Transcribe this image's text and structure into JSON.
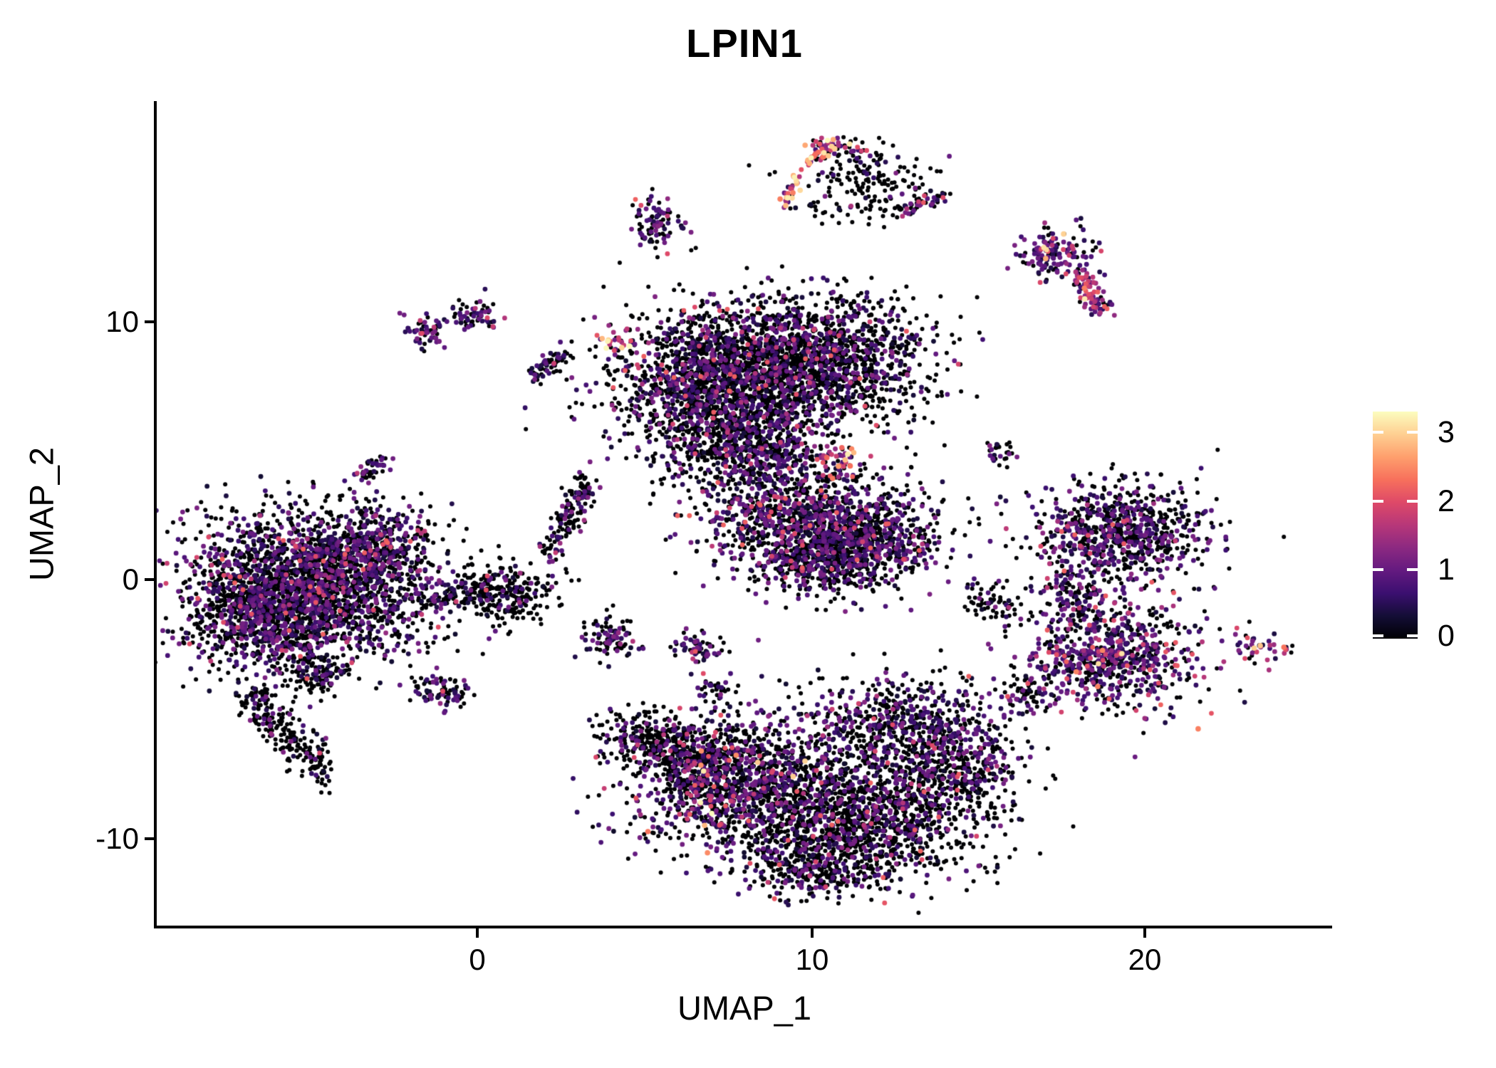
{
  "title": "LPIN1",
  "chart_data": {
    "type": "scatter",
    "title": "LPIN1",
    "xlabel": "UMAP_1",
    "ylabel": "UMAP_2",
    "x_tick_labels": [
      "0",
      "10",
      "20"
    ],
    "x_tick_values": [
      0,
      10,
      20
    ],
    "y_tick_labels": [
      "10",
      "0",
      "-10"
    ],
    "y_tick_values": [
      10,
      0,
      -10
    ],
    "xlim": [
      -9.6,
      25.5
    ],
    "ylim": [
      -13.5,
      18.6
    ],
    "grid": false,
    "legend": {
      "position": "right",
      "labels": [
        "3",
        "2",
        "1",
        "0"
      ],
      "values": [
        3,
        2,
        1,
        0
      ],
      "vmin": 0,
      "vmax": 3.3,
      "colormap": "magma"
    },
    "colormap_stops": [
      [
        0.0,
        "#000004"
      ],
      [
        0.1,
        "#140e36"
      ],
      [
        0.2,
        "#3b0f70"
      ],
      [
        0.3,
        "#641a80"
      ],
      [
        0.4,
        "#8c2981"
      ],
      [
        0.5,
        "#b73779"
      ],
      [
        0.6,
        "#de4968"
      ],
      [
        0.7,
        "#f7705c"
      ],
      [
        0.8,
        "#fe9f6d"
      ],
      [
        0.9,
        "#fecf92"
      ],
      [
        1.0,
        "#fcfdbf"
      ]
    ],
    "value_bins": {
      "zero": 0,
      "low": [
        0.25,
        1.2
      ],
      "mid": [
        1.2,
        2.2
      ],
      "high": [
        2.2,
        3.3
      ]
    },
    "clusters": [
      {
        "name": "left-main-a",
        "shape": "gauss",
        "c": [
          -5.6,
          0.2
        ],
        "sx": 1.6,
        "sy": 1.3,
        "n": 1100,
        "w": [
          0.6,
          0.36,
          0.04,
          0
        ]
      },
      {
        "name": "left-main-b",
        "shape": "gauss",
        "c": [
          -4.2,
          -0.8
        ],
        "sx": 1.5,
        "sy": 1.2,
        "n": 900,
        "w": [
          0.62,
          0.34,
          0.04,
          0
        ]
      },
      {
        "name": "left-main-c",
        "shape": "gauss",
        "c": [
          -6.6,
          -1.6
        ],
        "sx": 1.2,
        "sy": 1.0,
        "n": 600,
        "w": [
          0.66,
          0.31,
          0.03,
          0
        ]
      },
      {
        "name": "left-main-d",
        "shape": "gauss",
        "c": [
          -3.3,
          1.3
        ],
        "sx": 1.0,
        "sy": 0.8,
        "n": 450,
        "w": [
          0.58,
          0.38,
          0.04,
          0
        ]
      },
      {
        "name": "left-tail",
        "shape": "line",
        "from": [
          -6.9,
          -4.2
        ],
        "to": [
          -4.6,
          -7.6
        ],
        "jitter": 0.35,
        "n": 240,
        "w": [
          0.8,
          0.19,
          0.01,
          0
        ]
      },
      {
        "name": "left-small-below",
        "shape": "gauss",
        "c": [
          -4.9,
          -3.6
        ],
        "sx": 0.5,
        "sy": 0.4,
        "n": 110,
        "w": [
          0.7,
          0.28,
          0.02,
          0
        ]
      },
      {
        "name": "small-blob-lower-mid",
        "shape": "gauss",
        "c": [
          -1.1,
          -4.3
        ],
        "sx": 0.45,
        "sy": 0.35,
        "n": 80,
        "w": [
          0.55,
          0.4,
          0.05,
          0
        ]
      },
      {
        "name": "tiny-streak-left",
        "shape": "line",
        "from": [
          -3.5,
          4.0
        ],
        "to": [
          -2.8,
          4.7
        ],
        "jitter": 0.15,
        "n": 45,
        "w": [
          0.5,
          0.45,
          0.05,
          0
        ]
      },
      {
        "name": "blob-center-left",
        "shape": "gauss",
        "c": [
          0.8,
          -0.5
        ],
        "sx": 0.75,
        "sy": 0.6,
        "n": 260,
        "w": [
          0.78,
          0.2,
          0.02,
          0
        ]
      },
      {
        "name": "bridge-to-blob",
        "shape": "line",
        "from": [
          -1.9,
          -0.9
        ],
        "to": [
          0.2,
          -0.5
        ],
        "jitter": 0.2,
        "n": 80,
        "w": [
          0.75,
          0.24,
          0.01,
          0
        ]
      },
      {
        "name": "diag-bridge",
        "shape": "line",
        "from": [
          2.1,
          0.9
        ],
        "to": [
          3.4,
          4.0
        ],
        "jitter": 0.22,
        "n": 150,
        "w": [
          0.7,
          0.28,
          0.02,
          0
        ]
      },
      {
        "name": "top-center-left",
        "shape": "gauss",
        "c": [
          6.8,
          7.6
        ],
        "sx": 1.5,
        "sy": 1.4,
        "n": 1400,
        "w": [
          0.66,
          0.3,
          0.04,
          0
        ]
      },
      {
        "name": "top-center-right",
        "shape": "gauss",
        "c": [
          9.9,
          8.4
        ],
        "sx": 1.7,
        "sy": 1.3,
        "n": 1800,
        "w": [
          0.7,
          0.27,
          0.03,
          0
        ]
      },
      {
        "name": "top-center-lower",
        "shape": "gauss",
        "c": [
          7.9,
          5.2
        ],
        "sx": 1.1,
        "sy": 0.8,
        "n": 450,
        "w": [
          0.72,
          0.26,
          0.02,
          0
        ]
      },
      {
        "name": "salmon-patch-left-edge",
        "shape": "gauss",
        "c": [
          4.2,
          9.3
        ],
        "sx": 0.3,
        "sy": 0.25,
        "n": 22,
        "w": [
          0,
          0.2,
          0.6,
          0.2
        ]
      },
      {
        "name": "sparse-center",
        "shape": "gauss",
        "c": [
          8.8,
          4.3
        ],
        "sx": 1.3,
        "sy": 0.8,
        "n": 160,
        "w": [
          0.6,
          0.33,
          0.07,
          0
        ]
      },
      {
        "name": "bright-mid-patch",
        "shape": "gauss",
        "c": [
          10.8,
          4.7
        ],
        "sx": 0.35,
        "sy": 0.3,
        "n": 45,
        "w": [
          0.1,
          0.3,
          0.45,
          0.15
        ]
      },
      {
        "name": "mid-cluster-a",
        "shape": "gauss",
        "c": [
          9.6,
          2.2
        ],
        "sx": 1.5,
        "sy": 1.0,
        "n": 900,
        "w": [
          0.55,
          0.39,
          0.06,
          0
        ]
      },
      {
        "name": "mid-cluster-b",
        "shape": "gauss",
        "c": [
          11.7,
          1.6
        ],
        "sx": 1.2,
        "sy": 0.9,
        "n": 600,
        "w": [
          0.6,
          0.36,
          0.04,
          0
        ]
      },
      {
        "name": "mid-cluster-c",
        "shape": "gauss",
        "c": [
          10.2,
          0.6
        ],
        "sx": 1.0,
        "sy": 0.6,
        "n": 300,
        "w": [
          0.65,
          0.32,
          0.03,
          0
        ]
      },
      {
        "name": "bottom-left",
        "shape": "gauss",
        "c": [
          7.6,
          -7.8
        ],
        "sx": 1.6,
        "sy": 1.4,
        "n": 1300,
        "w": [
          0.58,
          0.35,
          0.06,
          0.01
        ]
      },
      {
        "name": "bottom-right",
        "shape": "gauss",
        "c": [
          11.5,
          -9.2
        ],
        "sx": 1.8,
        "sy": 1.3,
        "n": 1500,
        "w": [
          0.74,
          0.24,
          0.02,
          0
        ]
      },
      {
        "name": "bottom-upper",
        "shape": "gauss",
        "c": [
          12.8,
          -5.8
        ],
        "sx": 1.5,
        "sy": 1.0,
        "n": 650,
        "w": [
          0.62,
          0.34,
          0.04,
          0
        ]
      },
      {
        "name": "bottom-tail",
        "shape": "gauss",
        "c": [
          9.9,
          -11.3
        ],
        "sx": 0.9,
        "sy": 0.55,
        "n": 220,
        "w": [
          0.68,
          0.29,
          0.03,
          0
        ]
      },
      {
        "name": "bottom-right-arm",
        "shape": "gauss",
        "c": [
          14.6,
          -7.3
        ],
        "sx": 0.8,
        "sy": 0.8,
        "n": 250,
        "w": [
          0.72,
          0.26,
          0.02,
          0
        ]
      },
      {
        "name": "bottom-left-wing",
        "shape": "line",
        "from": [
          4.4,
          -5.9
        ],
        "to": [
          6.8,
          -7.3
        ],
        "jitter": 0.5,
        "n": 350,
        "w": [
          0.8,
          0.18,
          0.02,
          0
        ]
      },
      {
        "name": "small-blob-a",
        "shape": "gauss",
        "c": [
          4.0,
          -2.4
        ],
        "sx": 0.45,
        "sy": 0.4,
        "n": 90,
        "w": [
          0.6,
          0.36,
          0.04,
          0
        ]
      },
      {
        "name": "small-blob-b",
        "shape": "gauss",
        "c": [
          6.6,
          -2.6
        ],
        "sx": 0.35,
        "sy": 0.3,
        "n": 60,
        "w": [
          0.55,
          0.4,
          0.05,
          0
        ]
      },
      {
        "name": "small-blob-c",
        "shape": "gauss",
        "c": [
          7.1,
          -4.2
        ],
        "sx": 0.25,
        "sy": 0.2,
        "n": 30,
        "w": [
          0.6,
          0.37,
          0.03,
          0
        ]
      },
      {
        "name": "small-blob-d",
        "shape": "gauss",
        "c": [
          15.4,
          -0.9
        ],
        "sx": 0.5,
        "sy": 0.4,
        "n": 70,
        "w": [
          0.75,
          0.23,
          0.02,
          0
        ]
      },
      {
        "name": "tiny-blob-e",
        "shape": "gauss",
        "c": [
          15.6,
          4.9
        ],
        "sx": 0.3,
        "sy": 0.25,
        "n": 28,
        "w": [
          0.7,
          0.28,
          0.02,
          0
        ]
      },
      {
        "name": "sparse-between",
        "shape": "gauss",
        "c": [
          16.4,
          -4.4
        ],
        "sx": 0.4,
        "sy": 0.5,
        "n": 60,
        "w": [
          0.7,
          0.28,
          0.02,
          0
        ]
      },
      {
        "name": "right-upper",
        "shape": "gauss",
        "c": [
          19.2,
          1.8
        ],
        "sx": 1.3,
        "sy": 0.9,
        "n": 800,
        "w": [
          0.55,
          0.4,
          0.05,
          0
        ]
      },
      {
        "name": "right-lower",
        "shape": "gauss",
        "c": [
          19.0,
          -3.0
        ],
        "sx": 1.3,
        "sy": 1.0,
        "n": 750,
        "w": [
          0.42,
          0.45,
          0.12,
          0.01
        ]
      },
      {
        "name": "right-bridge",
        "shape": "gauss",
        "c": [
          17.9,
          -0.6
        ],
        "sx": 0.5,
        "sy": 0.6,
        "n": 120,
        "w": [
          0.6,
          0.36,
          0.04,
          0
        ]
      },
      {
        "name": "far-right-blob",
        "shape": "gauss",
        "c": [
          23.4,
          -2.6
        ],
        "sx": 0.4,
        "sy": 0.28,
        "angle": -25,
        "n": 42,
        "w": [
          0.25,
          0.45,
          0.2,
          0.1
        ]
      },
      {
        "name": "top-ring-bright-arc-a",
        "shape": "line",
        "from": [
          9.2,
          14.5
        ],
        "to": [
          9.7,
          15.9
        ],
        "jitter": 0.12,
        "n": 30,
        "w": [
          0.05,
          0.1,
          0.45,
          0.4
        ]
      },
      {
        "name": "top-ring-bright-arc-b",
        "shape": "line",
        "from": [
          9.8,
          16.1
        ],
        "to": [
          10.7,
          16.95
        ],
        "jitter": 0.12,
        "n": 30,
        "w": [
          0.05,
          0.1,
          0.45,
          0.4
        ]
      },
      {
        "name": "top-ring-scatter",
        "shape": "gauss",
        "c": [
          11.6,
          15.4
        ],
        "sx": 1.1,
        "sy": 0.8,
        "n": 200,
        "w": [
          0.86,
          0.12,
          0.02,
          0
        ]
      },
      {
        "name": "top-ring-right-chain",
        "shape": "line",
        "from": [
          12.6,
          14.3
        ],
        "to": [
          13.9,
          14.9
        ],
        "jitter": 0.15,
        "n": 45,
        "w": [
          0.45,
          0.35,
          0.18,
          0.02
        ]
      },
      {
        "name": "top-ring-top-arc",
        "shape": "line",
        "from": [
          10.0,
          17.0
        ],
        "to": [
          11.6,
          16.6
        ],
        "jitter": 0.12,
        "n": 30,
        "w": [
          0.3,
          0.4,
          0.25,
          0.05
        ]
      },
      {
        "name": "top-small-blob",
        "shape": "gauss",
        "c": [
          5.3,
          13.7
        ],
        "sx": 0.4,
        "sy": 0.5,
        "n": 90,
        "w": [
          0.5,
          0.45,
          0.05,
          0
        ]
      },
      {
        "name": "topright-chain-upper",
        "shape": "gauss",
        "c": [
          17.3,
          12.6
        ],
        "sx": 0.55,
        "sy": 0.5,
        "n": 140,
        "w": [
          0.25,
          0.55,
          0.18,
          0.02
        ]
      },
      {
        "name": "topright-chain-lower",
        "shape": "line",
        "from": [
          17.9,
          11.9
        ],
        "to": [
          18.6,
          10.4
        ],
        "jitter": 0.2,
        "n": 80,
        "w": [
          0.15,
          0.35,
          0.42,
          0.08
        ]
      },
      {
        "name": "small-pair-left",
        "shape": "gauss",
        "c": [
          -1.5,
          9.6
        ],
        "sx": 0.35,
        "sy": 0.35,
        "n": 55,
        "w": [
          0.35,
          0.55,
          0.1,
          0
        ]
      },
      {
        "name": "small-pair-right",
        "shape": "gauss",
        "c": [
          -0.1,
          10.2
        ],
        "sx": 0.4,
        "sy": 0.3,
        "n": 65,
        "w": [
          0.5,
          0.4,
          0.1,
          0
        ]
      },
      {
        "name": "small-streak-mid",
        "shape": "line",
        "from": [
          1.6,
          7.9
        ],
        "to": [
          2.6,
          8.7
        ],
        "jitter": 0.15,
        "n": 60,
        "w": [
          0.55,
          0.4,
          0.05,
          0
        ]
      }
    ]
  }
}
